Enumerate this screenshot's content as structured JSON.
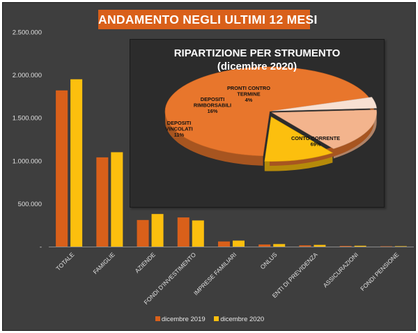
{
  "title": "ANDAMENTO NEGLI ULTIMI 12 MESI",
  "colors": {
    "dec2019": "#d9601a",
    "dec2020": "#fcbf0e"
  },
  "chart_data": [
    {
      "type": "bar",
      "title": "ANDAMENTO NEGLI ULTIMI 12 MESI",
      "xlabel": "",
      "ylabel": "",
      "ylim": [
        0,
        2500000
      ],
      "yticks": [
        "-",
        "500.000",
        "1.000.000",
        "1.500.000",
        "2.000.000",
        "2.500.000"
      ],
      "grid": false,
      "legend_position": "bottom",
      "categories": [
        "TOTALE",
        "FAMIGLIE",
        "AZIENDE",
        "FONDI D'INVESTIMENTO",
        "IMPRESE FAMILIARI",
        "ONLUS",
        "ENTI DI PREVIDENZA",
        "ASSICURAZIONI",
        "FONDI PENSIONE"
      ],
      "series": [
        {
          "name": "dicembre 2019",
          "color": "#d9601a",
          "values": [
            1820000,
            1040000,
            310000,
            340000,
            60000,
            25000,
            15000,
            8000,
            4000
          ]
        },
        {
          "name": "dicembre 2020",
          "color": "#fcbf0e",
          "values": [
            1950000,
            1100000,
            380000,
            305000,
            70000,
            30000,
            20000,
            10000,
            5000
          ]
        }
      ]
    },
    {
      "type": "pie",
      "title_lines": [
        "RIPARTIZIONE PER STRUMENTO",
        "(dicembre 2020)"
      ],
      "slices": [
        {
          "label_lines": [
            "CONTO CORRENTE",
            "69%"
          ],
          "value": 69,
          "color": "#e8762c"
        },
        {
          "label_lines": [
            "DEPOSITI",
            "VINCOLATI",
            "11%"
          ],
          "value": 11,
          "color": "#fcbf0e"
        },
        {
          "label_lines": [
            "DEPOSITI",
            "RIMBORSABILI",
            "16%"
          ],
          "value": 16,
          "color": "#f3b48d"
        },
        {
          "label_lines": [
            "PRONTI CONTRO",
            "TERMINE",
            "4%"
          ],
          "value": 4,
          "color": "#f7e0d2"
        }
      ]
    }
  ]
}
